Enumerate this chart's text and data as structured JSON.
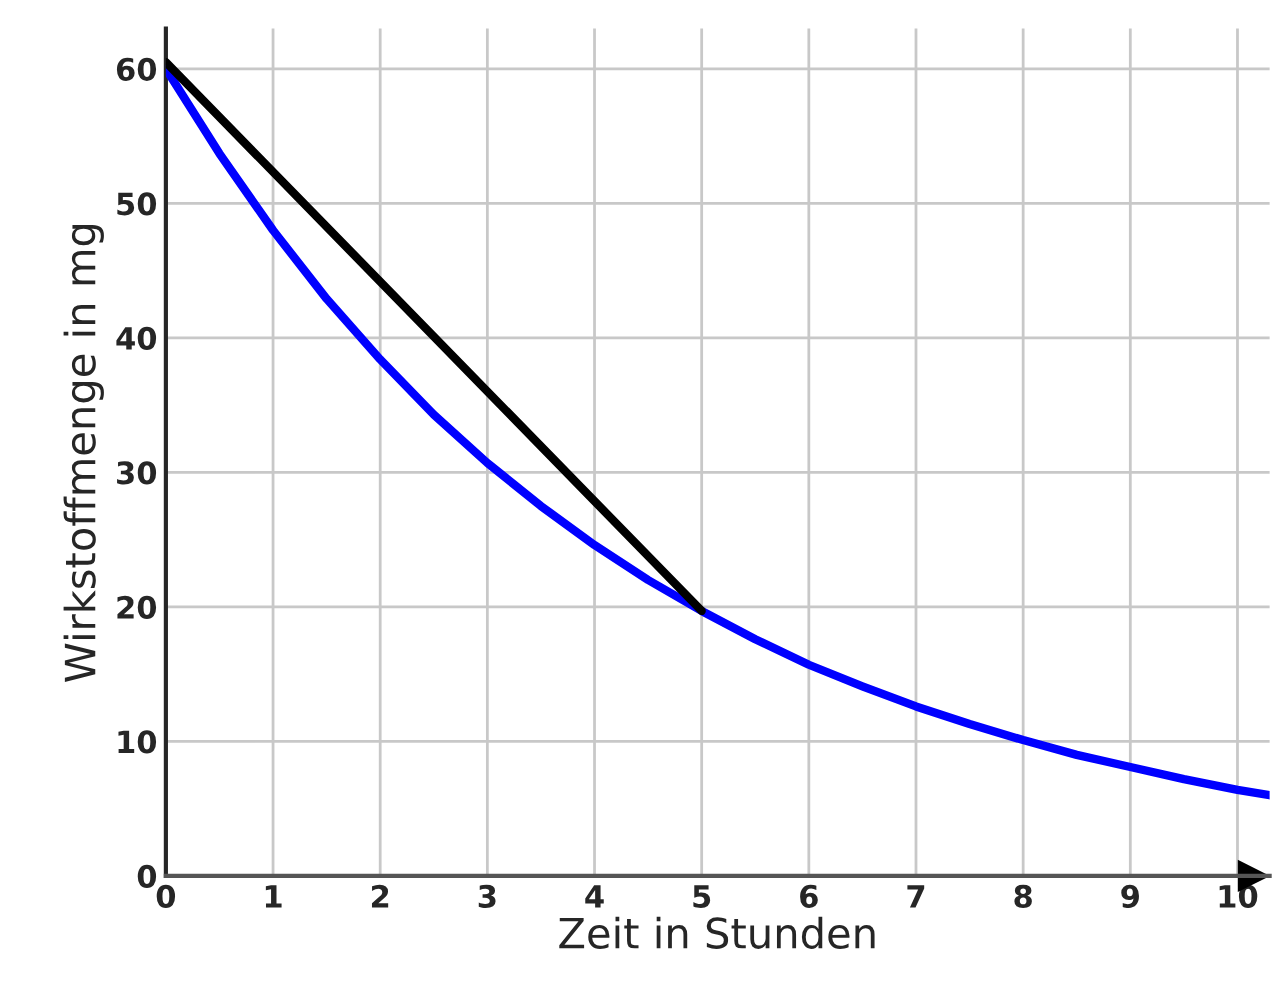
{
  "chart_data": {
    "type": "line",
    "xlabel": "Zeit in Stunden",
    "ylabel": "Wirkstoffmenge in mg",
    "series": [
      {
        "color": "#0000ff",
        "x": [
          0,
          0.5,
          1,
          1.5,
          2,
          2.5,
          3,
          3.5,
          4,
          4.5,
          5,
          5.5,
          6,
          6.5,
          7,
          7.5,
          8,
          8.5,
          9,
          9.5,
          10,
          10.3
        ],
        "values": [
          60,
          53.7,
          48,
          42.9,
          38.4,
          34.3,
          30.7,
          27.5,
          24.6,
          22,
          19.7,
          17.6,
          15.7,
          14.1,
          12.6,
          11.3,
          10.1,
          9,
          8.1,
          7.2,
          6.4,
          6
        ]
      },
      {
        "color": "#000000",
        "x": [
          0,
          5
        ],
        "values": [
          60.5,
          19.7
        ]
      }
    ],
    "xlim": [
      0,
      10.3
    ],
    "ylim": [
      0,
      63
    ],
    "xticks": [
      0,
      1,
      2,
      3,
      4,
      5,
      6,
      7,
      8,
      9,
      10
    ],
    "yticks": [
      0,
      10,
      20,
      30,
      40,
      50,
      60
    ],
    "grid": true,
    "marker": "none",
    "line_style": "solid"
  }
}
